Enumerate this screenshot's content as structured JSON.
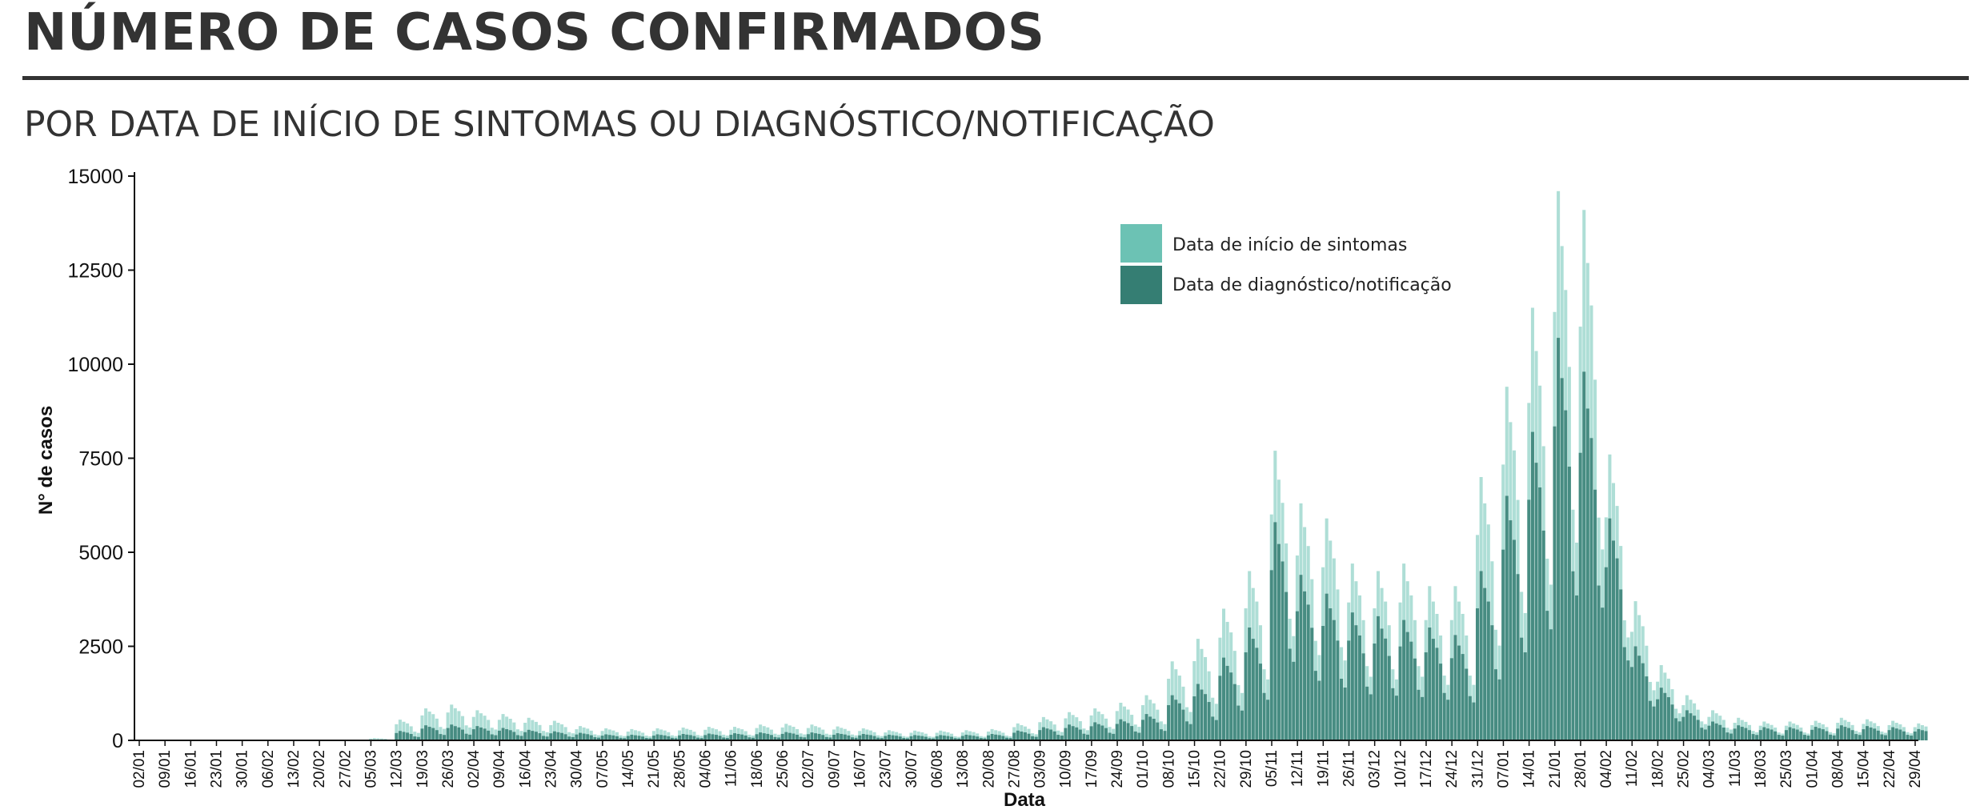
{
  "header": {
    "title": "NÚMERO DE CASOS CONFIRMADOS",
    "subtitle": "POR DATA DE INÍCIO DE SINTOMAS OU DIAGNÓSTICO/NOTIFICAÇÃO"
  },
  "chart_data": {
    "type": "bar",
    "xlabel": "Data",
    "ylabel": "N° de casos",
    "ylim": [
      0,
      15000
    ],
    "yticks": [
      0,
      2500,
      5000,
      7500,
      10000,
      12500,
      15000
    ],
    "xticks": [
      "02/01",
      "09/01",
      "16/01",
      "23/01",
      "30/01",
      "06/02",
      "13/02",
      "20/02",
      "27/02",
      "05/03",
      "12/03",
      "19/03",
      "26/03",
      "02/04",
      "09/04",
      "16/04",
      "23/04",
      "30/04",
      "07/05",
      "14/05",
      "21/05",
      "28/05",
      "04/06",
      "11/06",
      "18/06",
      "25/06",
      "02/07",
      "09/07",
      "16/07",
      "23/07",
      "30/07",
      "06/08",
      "13/08",
      "20/08",
      "27/08",
      "03/09",
      "10/09",
      "17/09",
      "24/09",
      "01/10",
      "08/10",
      "15/10",
      "22/10",
      "29/10",
      "05/11",
      "12/11",
      "19/11",
      "26/11",
      "03/12",
      "10/12",
      "17/12",
      "24/12",
      "31/12",
      "07/01",
      "14/01",
      "21/01",
      "28/01",
      "04/02",
      "11/02",
      "18/02",
      "25/02",
      "04/03",
      "11/03",
      "18/03",
      "25/03",
      "01/04",
      "08/04",
      "15/04",
      "22/04",
      "29/04"
    ],
    "legend_position": "top-right",
    "series": [
      {
        "name": "Data de início de sintomas",
        "color": "#6cc2b4",
        "weekly_avg": [
          0,
          0,
          0,
          0,
          0,
          0,
          0,
          0,
          0,
          40,
          450,
          750,
          850,
          700,
          600,
          500,
          450,
          330,
          280,
          260,
          280,
          300,
          320,
          320,
          380,
          400,
          380,
          330,
          280,
          230,
          220,
          220,
          230,
          260,
          400,
          550,
          680,
          780,
          900,
          1100,
          1900,
          2400,
          3200,
          4300,
          5300,
          5800,
          5000,
          4200,
          4000,
          4000,
          3700,
          3400,
          5500,
          8300,
          11000,
          13800,
          12000,
          6800,
          3000,
          1700,
          900,
          650,
          520,
          450,
          450,
          450,
          500,
          480,
          450,
          380
        ],
        "weekly_peak": [
          0,
          0,
          0,
          0,
          0,
          0,
          0,
          0,
          0,
          60,
          550,
          850,
          950,
          800,
          700,
          600,
          520,
          380,
          320,
          300,
          320,
          340,
          360,
          360,
          420,
          440,
          420,
          370,
          320,
          270,
          260,
          260,
          270,
          300,
          450,
          620,
          750,
          850,
          1000,
          1200,
          2100,
          2700,
          3500,
          4500,
          7700,
          6300,
          5900,
          4700,
          4500,
          4700,
          4100,
          4100,
          7000,
          9400,
          11500,
          14600,
          14100,
          7600,
          3700,
          2000,
          1200,
          800,
          600,
          500,
          500,
          520,
          600,
          560,
          520,
          450
        ]
      },
      {
        "name": "Data de diagnóstico/notificação",
        "color": "#357e73",
        "weekly_avg": [
          0,
          0,
          0,
          0,
          0,
          0,
          0,
          0,
          0,
          0,
          150,
          250,
          300,
          280,
          250,
          200,
          180,
          150,
          120,
          110,
          120,
          130,
          140,
          150,
          170,
          180,
          170,
          150,
          130,
          110,
          100,
          100,
          110,
          130,
          200,
          280,
          350,
          400,
          480,
          600,
          1000,
          1300,
          1800,
          2600,
          3300,
          3900,
          3200,
          3000,
          2900,
          2800,
          2600,
          2300,
          3600,
          5400,
          7200,
          9500,
          7800,
          4200,
          2000,
          1200,
          650,
          450,
          350,
          300,
          300,
          300,
          350,
          330,
          300,
          250
        ],
        "weekly_peak": [
          0,
          0,
          0,
          0,
          0,
          0,
          0,
          0,
          0,
          0,
          250,
          400,
          420,
          380,
          330,
          280,
          240,
          200,
          160,
          150,
          160,
          170,
          180,
          190,
          210,
          220,
          210,
          190,
          170,
          150,
          140,
          140,
          150,
          170,
          260,
          350,
          420,
          480,
          560,
          700,
          1200,
          1500,
          2200,
          3000,
          5800,
          4400,
          3900,
          3400,
          3300,
          3200,
          3000,
          2800,
          4500,
          6500,
          8200,
          10700,
          9800,
          5900,
          2500,
          1400,
          800,
          500,
          400,
          350,
          350,
          360,
          400,
          380,
          350,
          300
        ]
      }
    ]
  }
}
